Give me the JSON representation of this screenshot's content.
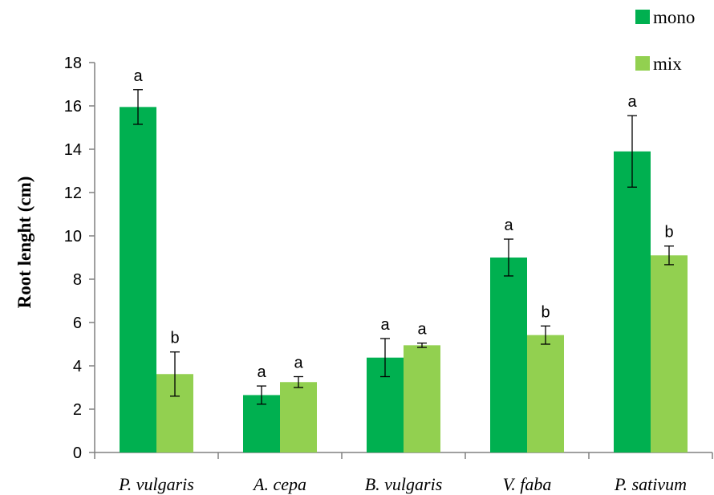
{
  "chart_data": {
    "type": "bar",
    "categories": [
      "P. vulgaris",
      "A. cepa",
      "B. vulgaris",
      "V. faba",
      "P. sativum"
    ],
    "series": [
      {
        "name": "mono",
        "color": "#00b050",
        "values": [
          15.95,
          2.65,
          4.38,
          9.0,
          13.9
        ],
        "errors": [
          0.8,
          0.42,
          0.88,
          0.85,
          1.65
        ],
        "labels": [
          "a",
          "a",
          "a",
          "a",
          "a"
        ]
      },
      {
        "name": "mix",
        "color": "#92d050",
        "values": [
          3.62,
          3.25,
          4.95,
          5.42,
          9.1
        ],
        "errors": [
          1.02,
          0.25,
          0.1,
          0.42,
          0.43
        ],
        "labels": [
          "b",
          "a",
          "a",
          "b",
          "b"
        ]
      }
    ],
    "xlabel": "",
    "ylabel": "Root lenght (cm)",
    "ylim": [
      0,
      18
    ],
    "yticks": [
      0,
      2,
      4,
      6,
      8,
      10,
      12,
      14,
      16,
      18
    ],
    "grid": false,
    "legend_position": "top-right"
  }
}
